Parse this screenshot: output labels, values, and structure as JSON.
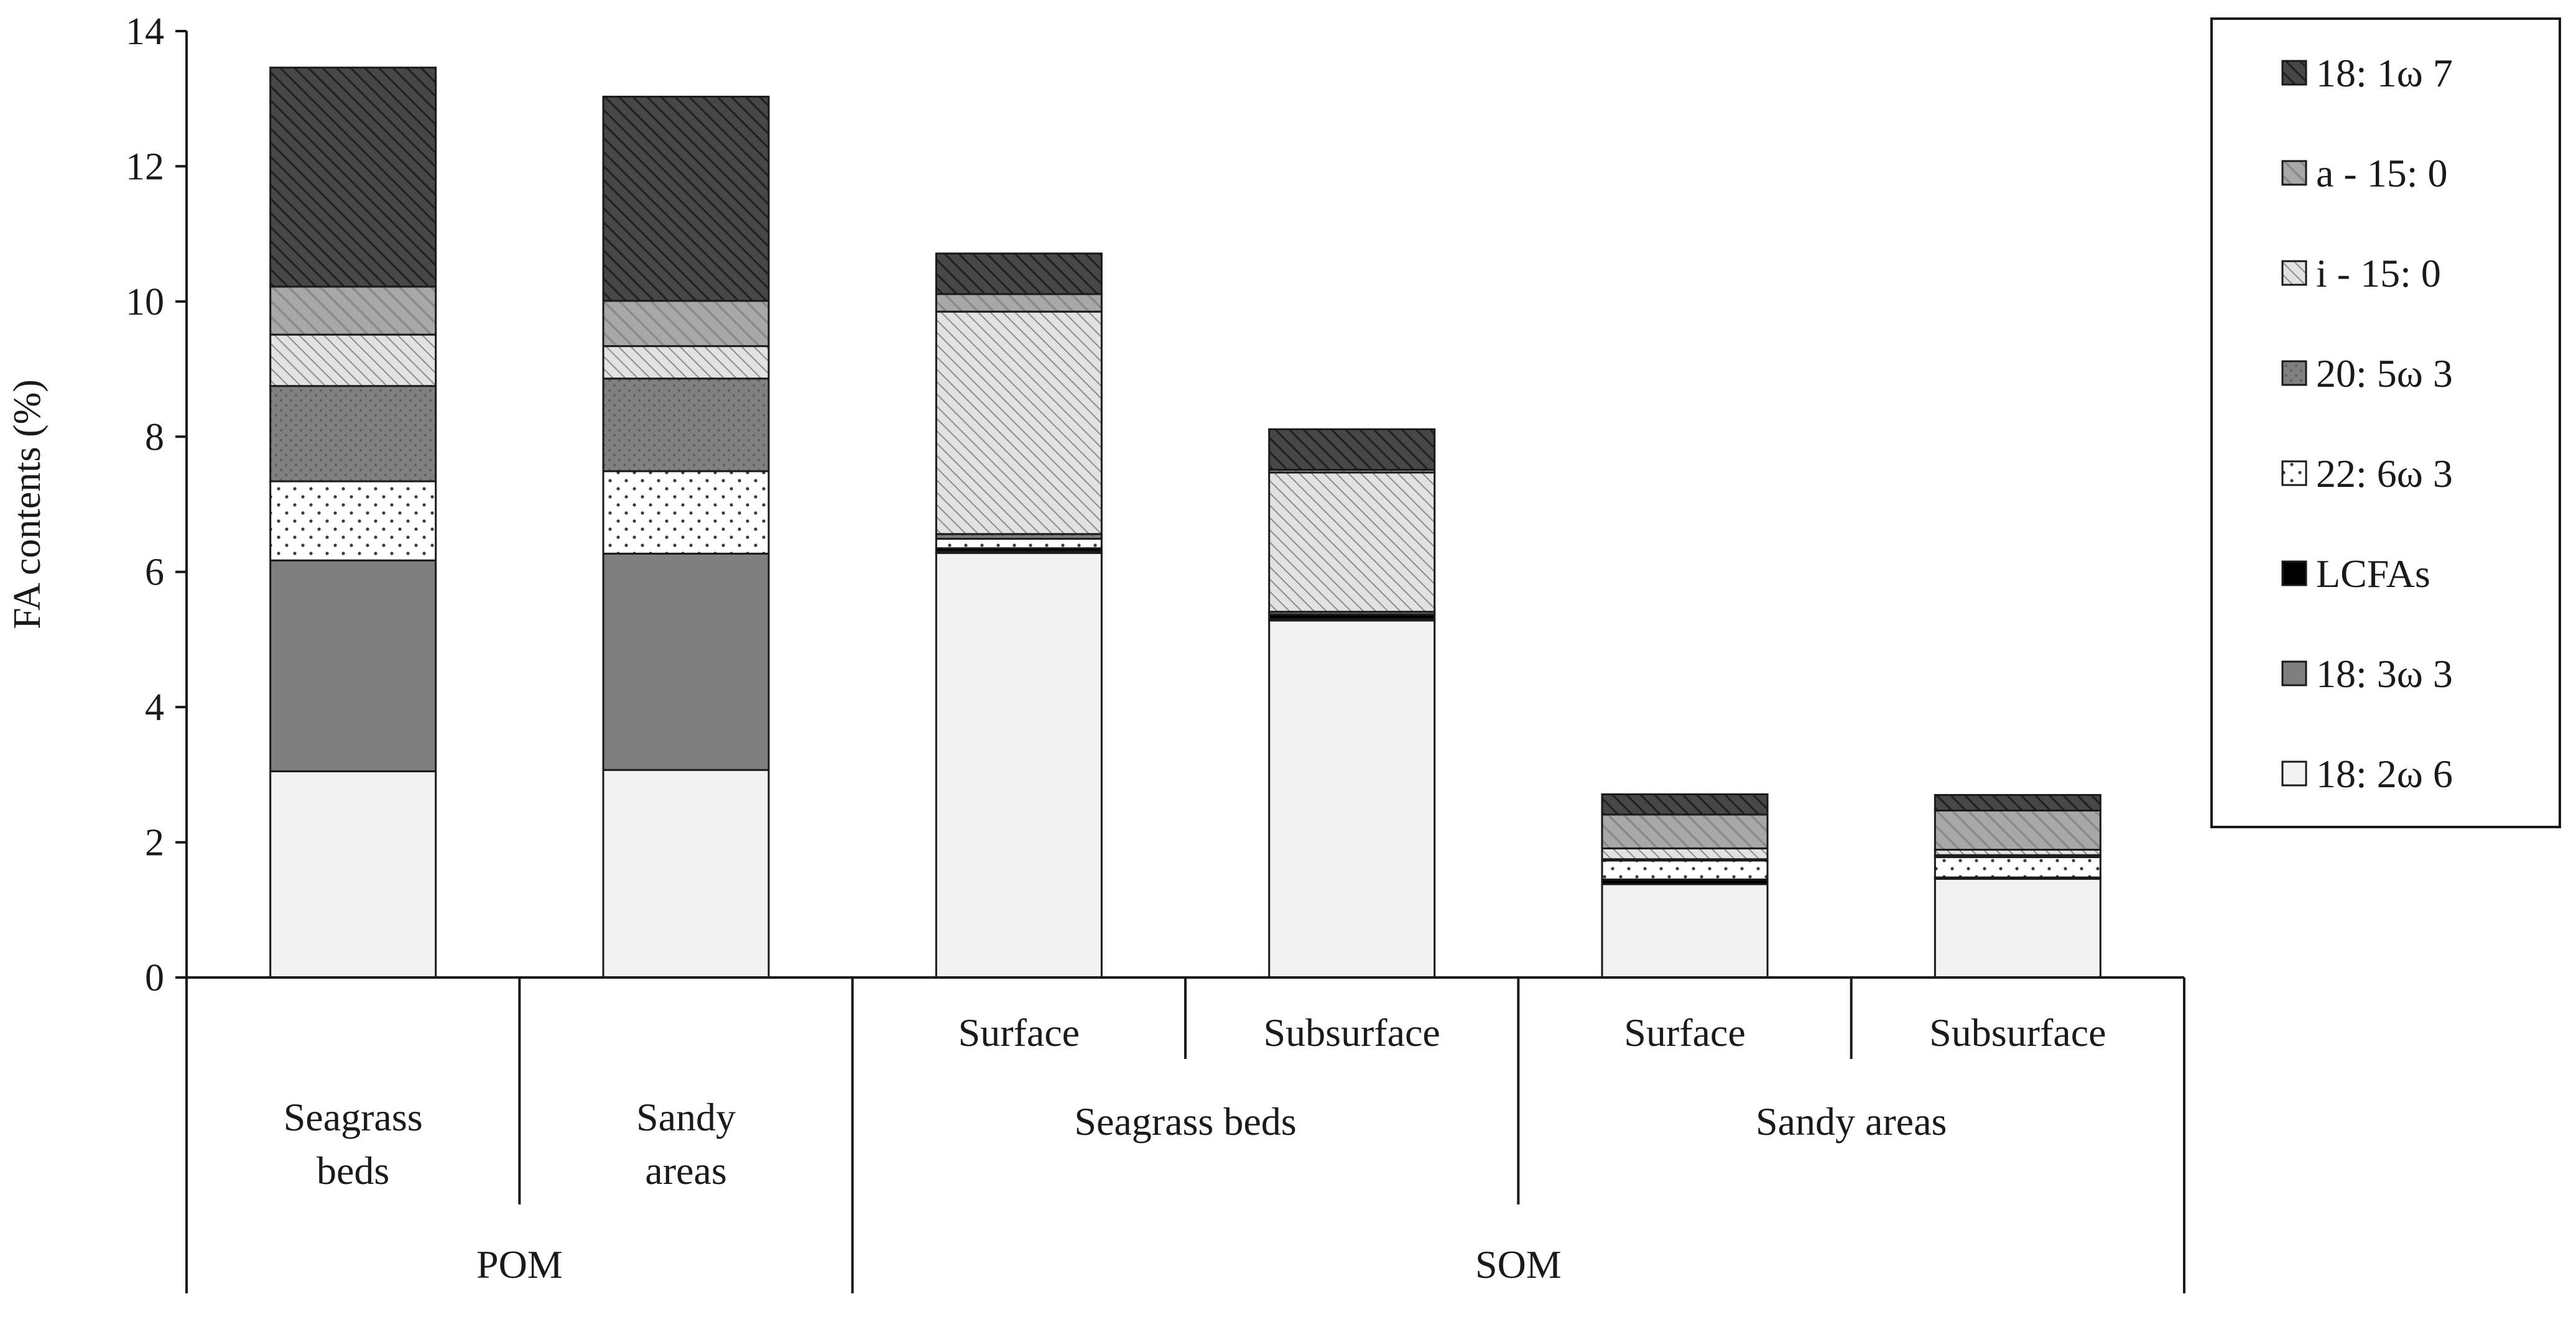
{
  "chart_data": {
    "type": "bar",
    "stacked": true,
    "ylabel": "FA contents (%)",
    "ylim": [
      0,
      14
    ],
    "yticks": [
      0,
      2,
      4,
      6,
      8,
      10,
      12,
      14
    ],
    "categories": [
      "POM Seagrass beds",
      "POM Sandy areas",
      "SOM Seagrass beds Surface",
      "SOM Seagrass beds Subsurface",
      "SOM Sandy areas Surface",
      "SOM Sandy areas Subsurface"
    ],
    "category_levels": {
      "level1": [
        "",
        "",
        "Surface",
        "Subsurface",
        "Surface",
        "Subsurface"
      ],
      "level2": [
        {
          "label": "Seagrass\nbeds",
          "span": [
            0,
            0
          ]
        },
        {
          "label": "Sandy\nareas",
          "span": [
            1,
            1
          ]
        },
        {
          "label": "Seagrass beds",
          "span": [
            2,
            3
          ]
        },
        {
          "label": "Sandy areas",
          "span": [
            4,
            5
          ]
        }
      ],
      "level3": [
        {
          "label": "POM",
          "span": [
            0,
            1
          ]
        },
        {
          "label": "SOM",
          "span": [
            2,
            5
          ]
        }
      ]
    },
    "series": [
      {
        "name": "18: 2ω 6",
        "key": "s-18-2w6",
        "values": [
          3.05,
          3.07,
          6.28,
          5.28,
          1.38,
          1.46
        ]
      },
      {
        "name": "18: 3ω 3",
        "key": "s-18-3w3",
        "values": [
          3.12,
          3.2,
          0.02,
          0.02,
          0.0,
          0.0
        ]
      },
      {
        "name": "LCFAs",
        "key": "s-lcfas",
        "values": [
          0.0,
          0.0,
          0.05,
          0.07,
          0.07,
          0.02
        ]
      },
      {
        "name": "22: 6ω 3",
        "key": "s-22-6w3",
        "values": [
          1.17,
          1.22,
          0.14,
          0.0,
          0.28,
          0.3
        ]
      },
      {
        "name": "20: 5ω 3",
        "key": "s-20-5w3",
        "values": [
          1.41,
          1.37,
          0.07,
          0.04,
          0.02,
          0.03
        ]
      },
      {
        "name": "i - 15: 0",
        "key": "s-i-15-0",
        "values": [
          0.76,
          0.48,
          3.29,
          2.06,
          0.16,
          0.08
        ]
      },
      {
        "name": "a - 15: 0",
        "key": "s-a-15-0",
        "values": [
          0.71,
          0.67,
          0.26,
          0.04,
          0.5,
          0.58
        ]
      },
      {
        "name": "18: 1ω 7",
        "key": "s-18-1w7",
        "values": [
          3.24,
          3.02,
          0.6,
          0.6,
          0.3,
          0.23
        ]
      }
    ],
    "legend_order": [
      "18: 1ω 7",
      "a - 15: 0",
      "i - 15: 0",
      "20: 5ω 3",
      "22: 6ω 3",
      "LCFAs",
      "18: 3ω 3",
      "18: 2ω 6"
    ],
    "legend_position": "right"
  }
}
